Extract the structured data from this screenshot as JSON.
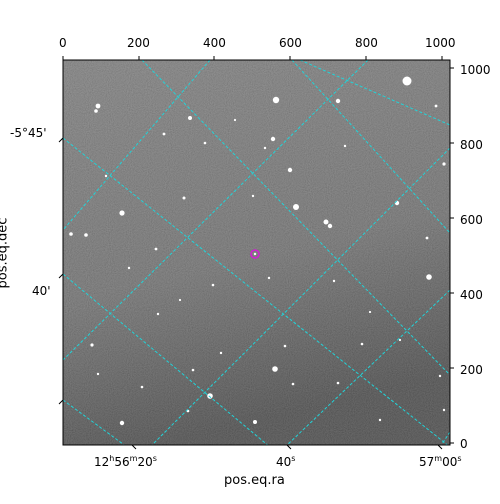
{
  "figure": {
    "xlabel": "pos.eq.ra",
    "ylabel": "pos.eq.dec",
    "pixel_axes": {
      "top_ticks": [
        "0",
        "200",
        "400",
        "600",
        "800",
        "1000"
      ],
      "right_ticks": [
        "0",
        "200",
        "400",
        "600",
        "800",
        "1000"
      ]
    },
    "world_axes": {
      "bottom_ticks": [
        {
          "h": "12",
          "m": "56",
          "s": "20",
          "text": "12h56m20s"
        },
        {
          "s": "40",
          "text": "40s"
        },
        {
          "m": "57",
          "s": "00",
          "text": "57m00s"
        }
      ],
      "left_ticks": [
        "-5°45'",
        "40'"
      ]
    },
    "grid_color": "#22d3d8",
    "marker_color": "#d020d0",
    "image_style": "grayscale star field"
  }
}
